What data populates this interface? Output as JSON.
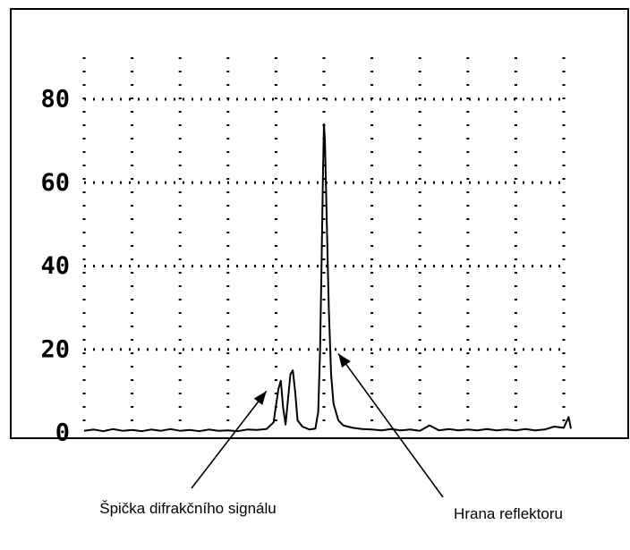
{
  "chart_data": {
    "type": "line",
    "title": "",
    "xlabel": "",
    "ylabel": "",
    "ylim": [
      0,
      90
    ],
    "xlim": [
      0,
      10
    ],
    "grid": true,
    "grid_style": "dotted",
    "y_ticks": [
      0,
      20,
      40,
      60,
      80
    ],
    "y_tick_labels": [
      "0",
      "20",
      "40",
      "60",
      "80"
    ],
    "x_gridlines": [
      0,
      1,
      2,
      3,
      4,
      5,
      6,
      7,
      8,
      9,
      10
    ],
    "colors": {
      "line": "#000000",
      "frame": "#000000",
      "grid": "#000000",
      "background": "#ffffff"
    },
    "series": [
      {
        "values": [
          [
            0.0,
            0.5
          ],
          [
            0.2,
            0.8
          ],
          [
            0.4,
            0.4
          ],
          [
            0.6,
            0.9
          ],
          [
            0.8,
            0.5
          ],
          [
            1.0,
            0.7
          ],
          [
            1.2,
            0.4
          ],
          [
            1.4,
            0.8
          ],
          [
            1.6,
            0.5
          ],
          [
            1.8,
            0.9
          ],
          [
            2.0,
            0.5
          ],
          [
            2.2,
            0.7
          ],
          [
            2.4,
            0.4
          ],
          [
            2.6,
            0.8
          ],
          [
            2.8,
            0.5
          ],
          [
            3.0,
            0.6
          ],
          [
            3.2,
            0.4
          ],
          [
            3.4,
            0.8
          ],
          [
            3.6,
            0.7
          ],
          [
            3.8,
            0.9
          ],
          [
            3.95,
            2.5
          ],
          [
            4.05,
            10.5
          ],
          [
            4.1,
            12.5
          ],
          [
            4.15,
            6.0
          ],
          [
            4.2,
            2.0
          ],
          [
            4.25,
            8.0
          ],
          [
            4.3,
            14.0
          ],
          [
            4.35,
            15.0
          ],
          [
            4.4,
            10.0
          ],
          [
            4.45,
            3.0
          ],
          [
            4.55,
            1.5
          ],
          [
            4.7,
            0.8
          ],
          [
            4.82,
            1.0
          ],
          [
            4.88,
            5.0
          ],
          [
            4.92,
            20.0
          ],
          [
            4.95,
            40.0
          ],
          [
            4.98,
            62.0
          ],
          [
            5.0,
            74.0
          ],
          [
            5.02,
            70.0
          ],
          [
            5.05,
            55.0
          ],
          [
            5.1,
            30.0
          ],
          [
            5.15,
            14.0
          ],
          [
            5.2,
            7.0
          ],
          [
            5.3,
            3.0
          ],
          [
            5.4,
            1.8
          ],
          [
            5.6,
            1.2
          ],
          [
            5.8,
            0.9
          ],
          [
            6.0,
            0.8
          ],
          [
            6.2,
            0.6
          ],
          [
            6.4,
            0.9
          ],
          [
            6.6,
            0.6
          ],
          [
            6.8,
            0.8
          ],
          [
            7.0,
            0.5
          ],
          [
            7.2,
            1.8
          ],
          [
            7.4,
            0.6
          ],
          [
            7.6,
            0.9
          ],
          [
            7.8,
            0.6
          ],
          [
            8.0,
            0.8
          ],
          [
            8.2,
            0.6
          ],
          [
            8.4,
            0.9
          ],
          [
            8.6,
            0.6
          ],
          [
            8.8,
            0.8
          ],
          [
            9.0,
            0.6
          ],
          [
            9.2,
            0.9
          ],
          [
            9.4,
            0.6
          ],
          [
            9.6,
            0.8
          ],
          [
            9.8,
            1.5
          ],
          [
            10.0,
            1.2
          ],
          [
            10.1,
            3.8
          ],
          [
            10.15,
            1.0
          ]
        ]
      }
    ],
    "annotations": [
      {
        "text": "Špička difrakčního signálu",
        "target": [
          3.8,
          10.0
        ]
      },
      {
        "text": "Hrana reflektoru",
        "target": [
          5.3,
          19.0
        ]
      }
    ]
  }
}
